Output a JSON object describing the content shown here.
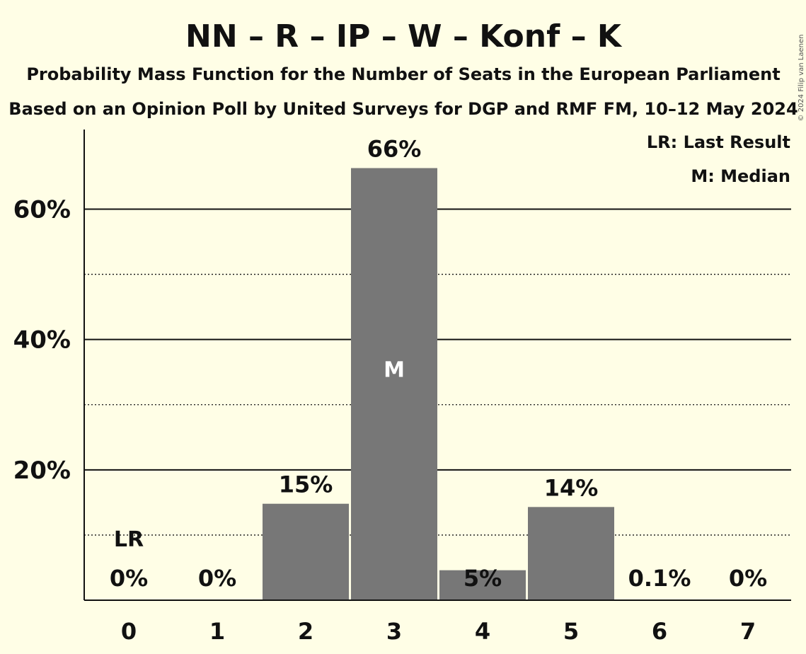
{
  "colors": {
    "background": "#FFFEE6",
    "bar": "#777777",
    "text": "#111111",
    "median_label": "#FFFFFF"
  },
  "chart_data": {
    "type": "bar",
    "title": "NN – R – IP – W – Konf – K",
    "subtitle": "Probability Mass Function for the Number of Seats in the European Parliament",
    "source_line": "Based on an Opinion Poll by United Surveys for DGP and RMF FM, 10–12 May 2024",
    "copyright": "© 2024 Filip van Laenen",
    "categories": [
      "0",
      "1",
      "2",
      "3",
      "4",
      "5",
      "6",
      "7"
    ],
    "values": [
      0,
      0,
      14.8,
      66.3,
      4.6,
      14.3,
      0.1,
      0
    ],
    "data_labels": [
      "0%",
      "0%",
      "15%",
      "66%",
      "5%",
      "14%",
      "0.1%",
      "0%"
    ],
    "ylim": [
      0,
      72
    ],
    "yticks": [
      20,
      40,
      60
    ],
    "ytick_labels": [
      "20%",
      "40%",
      "60%"
    ],
    "minor_gridlines": [
      10,
      30,
      50
    ],
    "grid": true,
    "last_result_index": 0,
    "last_result_label": "LR",
    "median_index": 3,
    "median_label": "M",
    "legend": {
      "placement": "top-right",
      "items": [
        "LR: Last Result",
        "M: Median"
      ]
    }
  }
}
